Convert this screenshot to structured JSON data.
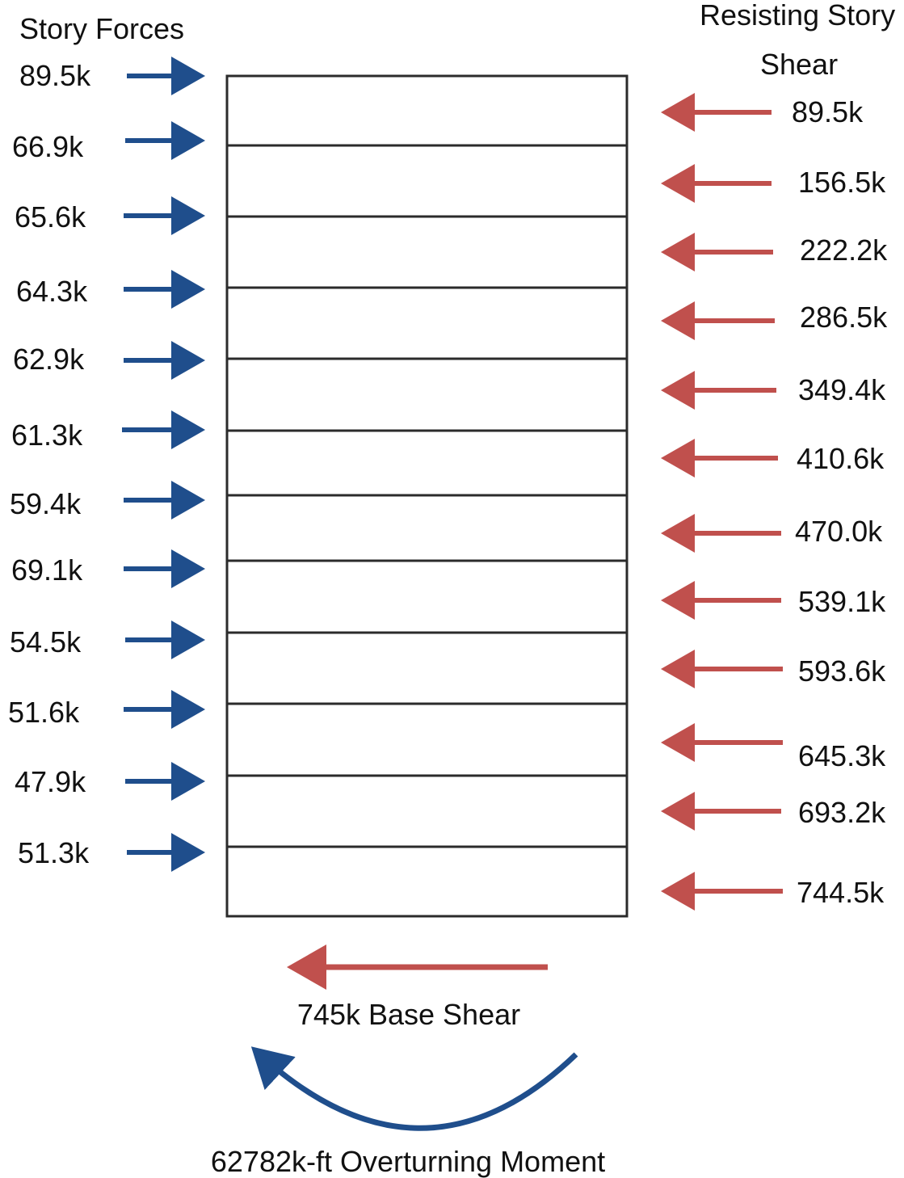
{
  "headings": {
    "story_forces": "Story Forces",
    "resisting_line1": "Resisting Story",
    "resisting_line2": "Shear"
  },
  "story_forces": [
    "89.5k",
    "66.9k",
    "65.6k",
    "64.3k",
    "62.9k",
    "61.3k",
    "59.4k",
    "69.1k",
    "54.5k",
    "51.6k",
    "47.9k",
    "51.3k"
  ],
  "resisting_shear": [
    "89.5k",
    "156.5k",
    "222.2k",
    "286.5k",
    "349.4k",
    "410.6k",
    "470.0k",
    "539.1k",
    "593.6k",
    "645.3k",
    "693.2k",
    "744.5k"
  ],
  "base_shear_label": "745k Base Shear",
  "moment_label": "62782k-ft Overturning Moment",
  "colors": {
    "force_arrow": "#1f4e8c",
    "shear_arrow": "#c0504d",
    "frame": "#2b2b2b"
  },
  "icons": {
    "story_force": "right-arrow-icon",
    "resisting_shear": "left-arrow-icon",
    "base_shear": "left-arrow-icon",
    "moment": "curved-arrow-icon"
  }
}
